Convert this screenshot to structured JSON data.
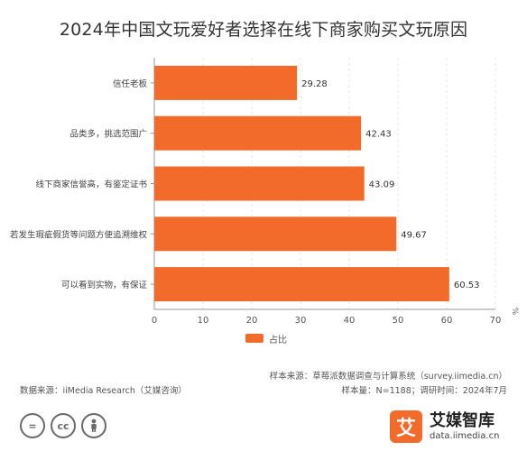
{
  "title": "2024年中国文玩爱好者选择在线下商家购买文玩原因",
  "chart_data": {
    "type": "bar",
    "orientation": "horizontal",
    "categories": [
      "信任老板",
      "品类多，挑选范围广",
      "线下商家信誉高，有鉴定证书",
      "若发生瑕疵假货等问题方便追溯维权",
      "可以看到实物，有保证"
    ],
    "series": [
      {
        "name": "占比",
        "values": [
          29.28,
          42.43,
          43.09,
          49.67,
          60.53
        ]
      }
    ],
    "xlim": [
      0,
      70
    ],
    "xticks": [
      0,
      10,
      20,
      30,
      40,
      50,
      60,
      70
    ],
    "unit_label": "%",
    "grid": true,
    "legend_position": "bottom"
  },
  "colors": {
    "bar": "#f26b2a",
    "grid": "#e4e4e4"
  },
  "footer": {
    "source_right": "样本来源：草莓派数据调查与计算系统（survey.iimedia.cn）",
    "sample_right": "样本量：N=1188；调研时间：2024年7月",
    "source_left": "数据来源：iiMedia Research（艾媒咨询）"
  },
  "license_icons": {
    "equal": "=",
    "cc": "cc",
    "person": "person-icon"
  },
  "brand": {
    "logo_char": "艾",
    "name": "艾媒智库",
    "url": "data.iimedia.cn"
  }
}
